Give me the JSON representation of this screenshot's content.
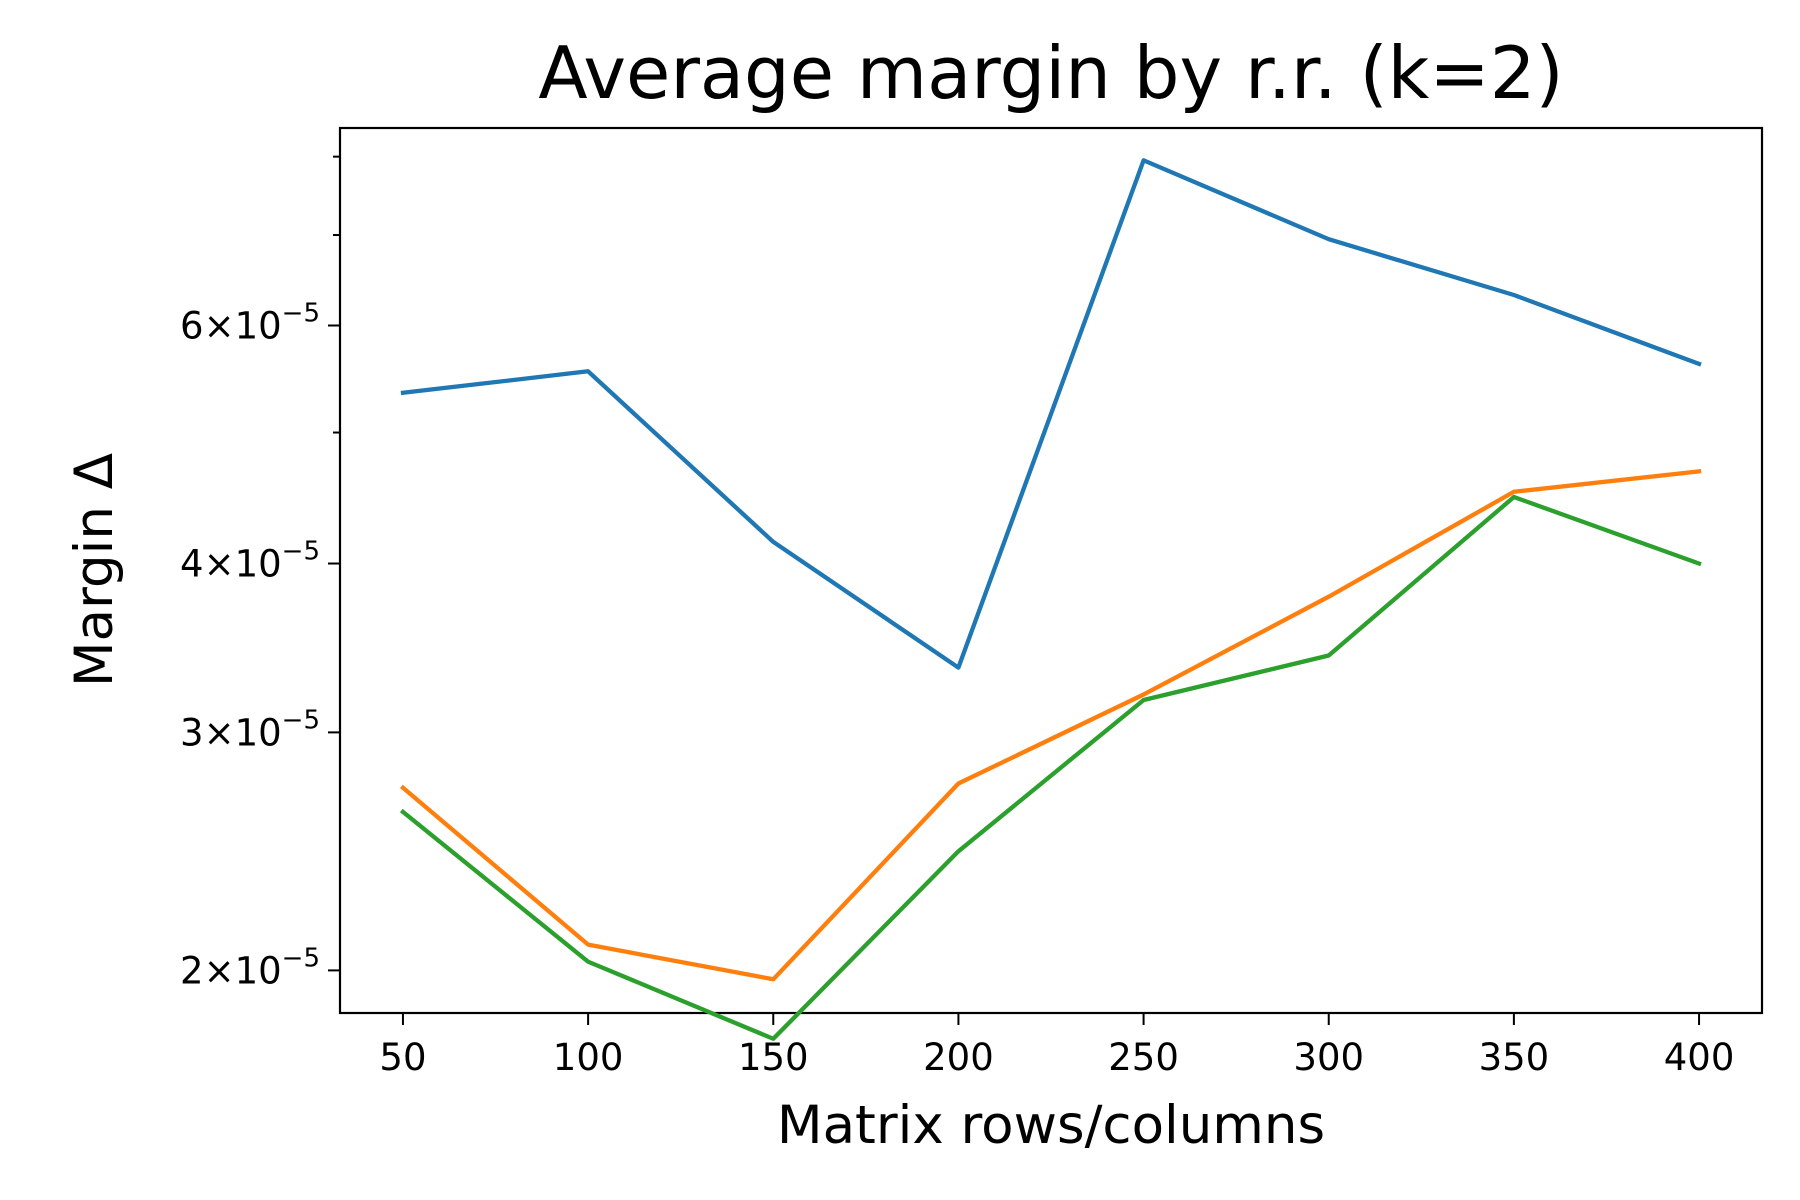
{
  "chart_data": {
    "type": "line",
    "title": "Average margin by r.r. (k=2)",
    "xlabel": "Matrix rows/columns",
    "ylabel": "Margin Δ",
    "x": [
      50,
      100,
      150,
      200,
      250,
      300,
      350,
      400
    ],
    "xlim": [
      33,
      417
    ],
    "ylim": [
      1.86e-05,
      8.4e-05
    ],
    "yscale": "log",
    "grid": false,
    "legend": "none",
    "x_ticks": [
      {
        "value": 50,
        "label": "50"
      },
      {
        "value": 100,
        "label": "100"
      },
      {
        "value": 150,
        "label": "150"
      },
      {
        "value": 200,
        "label": "200"
      },
      {
        "value": 250,
        "label": "250"
      },
      {
        "value": 300,
        "label": "300"
      },
      {
        "value": 350,
        "label": "350"
      },
      {
        "value": 400,
        "label": "400"
      }
    ],
    "y_major_ticks": [
      {
        "value": 2e-05,
        "mantissa": "2",
        "base": "10",
        "exponent": "−5"
      },
      {
        "value": 3e-05,
        "mantissa": "3",
        "base": "10",
        "exponent": "−5"
      },
      {
        "value": 4e-05,
        "mantissa": "4",
        "base": "10",
        "exponent": "−5"
      },
      {
        "value": 6e-05,
        "mantissa": "6",
        "base": "10",
        "exponent": "−5"
      }
    ],
    "y_minor_ticks": [
      5e-05,
      7e-05,
      8e-05
    ],
    "series": [
      {
        "color": "#1f77b4",
        "values": [
          5.35e-05,
          5.55e-05,
          4.15e-05,
          3.35e-05,
          7.95e-05,
          6.95e-05,
          6.32e-05,
          5.62e-05
        ]
      },
      {
        "color": "#ff7f0e",
        "values": [
          2.73e-05,
          2.09e-05,
          1.97e-05,
          2.75e-05,
          3.2e-05,
          3.78e-05,
          4.52e-05,
          4.68e-05
        ]
      },
      {
        "color": "#2ca02c",
        "values": [
          2.62e-05,
          2.03e-05,
          1.78e-05,
          2.45e-05,
          3.17e-05,
          3.42e-05,
          4.48e-05,
          4e-05
        ]
      }
    ]
  }
}
